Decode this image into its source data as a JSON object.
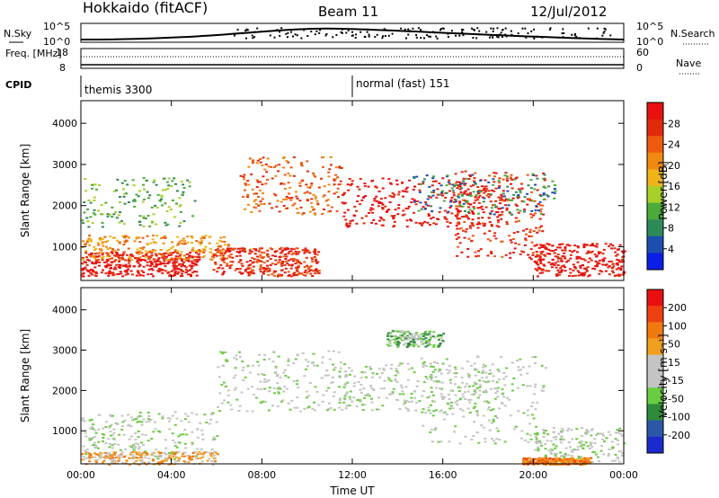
{
  "header": {
    "title": "Hokkaido (fitACF)",
    "beam": "Beam 11",
    "date": "12/Jul/2012"
  },
  "summary_panel": {
    "left_label_top": "N.Sky",
    "left_label_bottom": "Freq. [MHz]",
    "right_label_top": "N.Search",
    "right_label_bottom": "Nave",
    "cpid_label": "CPID",
    "left_ticks_top": [
      "10^5",
      "10^0"
    ],
    "right_ticks_top": [
      "10^5",
      "10^0"
    ],
    "left_ticks_bottom": [
      "18",
      "8"
    ],
    "right_ticks_bottom": [
      "60",
      "0"
    ],
    "cpid_modes": [
      {
        "label": "themis 3300",
        "start_hour": 0
      },
      {
        "label": "normal (fast) 151",
        "start_hour": 12
      }
    ]
  },
  "chart_data": [
    {
      "type": "heatmap",
      "title": "",
      "xlabel": "",
      "ylabel": "Slant Range [km]",
      "colorbar_label": "Power [dB]",
      "x_ticks": [
        "00:00",
        "04:00",
        "08:00",
        "12:00",
        "16:00",
        "20:00",
        "00:00"
      ],
      "xlim": [
        0,
        24
      ],
      "ylim": [
        180,
        4550
      ],
      "y_ticks": [
        1000,
        2000,
        3000,
        4000
      ],
      "colorbar_ticks": [
        "4",
        "8",
        "12",
        "16",
        "20",
        "24",
        "28"
      ],
      "colors": [
        "#0a1ee6",
        "#1e4fb0",
        "#2f8a5a",
        "#4cab3a",
        "#a8cf2a",
        "#f0b41a",
        "#f08a12",
        "#ee5a10",
        "#e02a0a",
        "#e81010"
      ],
      "scatter_regions": [
        {
          "t0": 0.0,
          "t1": 5.2,
          "r0": 300,
          "r1": 900,
          "density": 0.85,
          "level": 9
        },
        {
          "t0": 0.0,
          "t1": 6.5,
          "r0": 700,
          "r1": 1300,
          "density": 0.55,
          "level": 6
        },
        {
          "t0": 0.0,
          "t1": 5.0,
          "r0": 1500,
          "r1": 2700,
          "density": 0.35,
          "level": 3
        },
        {
          "t0": 5.8,
          "t1": 10.5,
          "r0": 300,
          "r1": 1000,
          "density": 0.75,
          "level": 8
        },
        {
          "t0": 7.0,
          "t1": 11.5,
          "r0": 1800,
          "r1": 3200,
          "density": 0.45,
          "level": 7
        },
        {
          "t0": 11.5,
          "t1": 18.8,
          "r0": 1500,
          "r1": 2700,
          "density": 0.7,
          "level": 9
        },
        {
          "t0": 16.5,
          "t1": 20.5,
          "r0": 700,
          "r1": 2900,
          "density": 0.55,
          "level": 8
        },
        {
          "t0": 20.0,
          "t1": 24.0,
          "r0": 300,
          "r1": 1100,
          "density": 0.65,
          "level": 9
        },
        {
          "t0": 14.5,
          "t1": 21.0,
          "r0": 1800,
          "r1": 2800,
          "density": 0.35,
          "level": 2
        }
      ]
    },
    {
      "type": "heatmap",
      "title": "",
      "xlabel": "Time UT",
      "ylabel": "Slant Range [km]",
      "colorbar_label": "Velocity [m s⁻¹]",
      "x_ticks": [
        "00:00",
        "04:00",
        "08:00",
        "12:00",
        "16:00",
        "20:00",
        "00:00"
      ],
      "xlim": [
        0,
        24
      ],
      "ylim": [
        180,
        4550
      ],
      "y_ticks": [
        1000,
        2000,
        3000,
        4000
      ],
      "colorbar_ticks": [
        "200",
        "100",
        "50",
        "15",
        "-15",
        "-50",
        "-100",
        "-200"
      ],
      "colors": [
        "#1a2acc",
        "#2a58a6",
        "#2f8b3c",
        "#6acc42",
        "#c4c4c4",
        "#c4c4c4",
        "#f0a020",
        "#f07a10",
        "#ee4010",
        "#e81010"
      ],
      "scatter_regions": [
        {
          "t0": 0.0,
          "t1": 6.0,
          "r0": 300,
          "r1": 1500,
          "density": 0.55,
          "level": 4
        },
        {
          "t0": 0.0,
          "t1": 6.0,
          "r0": 180,
          "r1": 500,
          "density": 0.45,
          "level": 6
        },
        {
          "t0": 6.0,
          "t1": 11.5,
          "r0": 1500,
          "r1": 3000,
          "density": 0.45,
          "level": 4
        },
        {
          "t0": 11.5,
          "t1": 18.8,
          "r0": 1500,
          "r1": 2700,
          "density": 0.6,
          "level": 4
        },
        {
          "t0": 15.0,
          "t1": 20.5,
          "r0": 700,
          "r1": 2900,
          "density": 0.45,
          "level": 4
        },
        {
          "t0": 13.5,
          "t1": 16.0,
          "r0": 3100,
          "r1": 3500,
          "density": 0.4,
          "level": 3
        },
        {
          "t0": 20.0,
          "t1": 24.0,
          "r0": 250,
          "r1": 1100,
          "density": 0.4,
          "level": 4
        },
        {
          "t0": 19.5,
          "t1": 22.5,
          "r0": 180,
          "r1": 350,
          "density": 0.6,
          "level": 7
        }
      ]
    }
  ]
}
